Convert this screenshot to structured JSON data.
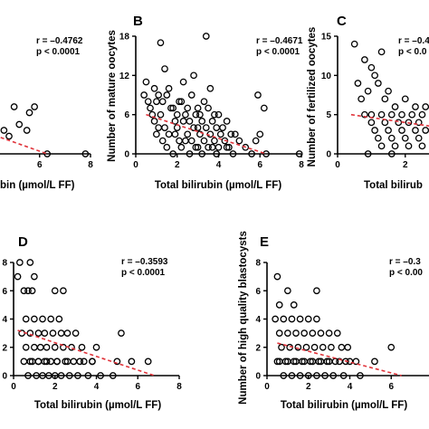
{
  "chart_data": [
    {
      "id": "A",
      "type": "scatter",
      "panel_label": "",
      "xlabel": "bin (µmol/L FF)",
      "ylabel": "",
      "xlim": [
        0,
        8
      ],
      "ylim": [
        0,
        20
      ],
      "xticks": [
        "4",
        "6",
        "8"
      ],
      "yticks": [],
      "stats": [
        "r = –0.4762",
        "p < 0.0001"
      ],
      "x": [
        4.0,
        4.2,
        4.5,
        4.6,
        4.3,
        4.1,
        4.0,
        5.0,
        5.2,
        5.5,
        5.8,
        4.8,
        5.6,
        6.3,
        7.8,
        4.4,
        4.0,
        4.5
      ],
      "y": [
        3,
        4,
        5,
        4,
        2,
        1,
        0,
        8,
        5,
        4,
        8,
        3,
        7,
        0,
        0,
        1,
        2,
        3
      ],
      "fit": {
        "x": [
          4.0,
          6.3
        ],
        "y": [
          3.5,
          0.0
        ]
      }
    },
    {
      "id": "B",
      "type": "scatter",
      "panel_label": "B",
      "xlabel": "Total bilirubin (µmol/L FF)",
      "ylabel": "Number of mature oocytes",
      "xlim": [
        0,
        8
      ],
      "ylim": [
        0,
        18
      ],
      "xticks": [
        "0",
        "2",
        "4",
        "6",
        "8"
      ],
      "yticks": [
        "0",
        "6",
        "12",
        "18"
      ],
      "stats": [
        "r = –0.4671",
        "p < 0.0001"
      ],
      "x": [
        0.5,
        1.2,
        3.4,
        0.4,
        0.9,
        1.4,
        2.1,
        2.8,
        0.6,
        1.1,
        1.6,
        2.3,
        3.0,
        3.6,
        0.7,
        1.0,
        1.3,
        1.5,
        1.8,
        2.0,
        2.2,
        2.5,
        2.7,
        3.1,
        3.3,
        3.5,
        3.8,
        0.8,
        1.2,
        1.7,
        1.9,
        2.4,
        2.6,
        2.9,
        3.2,
        3.7,
        4.0,
        4.4,
        0.9,
        1.1,
        1.4,
        2.0,
        2.3,
        2.8,
        3.0,
        3.4,
        3.9,
        4.2,
        4.6,
        1.0,
        1.6,
        1.9,
        2.5,
        3.1,
        3.6,
        4.1,
        4.8,
        1.3,
        2.1,
        2.7,
        3.3,
        3.8,
        4.3,
        5.0,
        1.5,
        2.2,
        2.9,
        3.5,
        4.0,
        4.5,
        5.3,
        1.8,
        2.6,
        3.2,
        3.9,
        4.7,
        5.6,
        2.4,
        3.0,
        3.7,
        4.4,
        5.9,
        6.2,
        7.9,
        6.0,
        5.8,
        6.3
      ],
      "y": [
        11,
        17,
        18,
        9,
        10,
        13,
        8,
        12,
        8,
        9,
        10,
        11,
        7,
        10,
        7,
        8,
        8,
        9,
        7,
        6,
        8,
        7,
        9,
        6,
        8,
        7,
        6,
        6,
        6,
        7,
        5,
        6,
        5,
        6,
        5,
        5,
        6,
        5,
        5,
        4,
        4,
        4,
        5,
        4,
        4,
        4,
        4,
        4,
        3,
        3,
        3,
        3,
        3,
        3,
        3,
        3,
        3,
        2,
        2,
        2,
        2,
        2,
        2,
        2,
        1,
        1,
        1,
        1,
        1,
        1,
        1,
        0,
        0,
        0,
        0,
        0,
        0,
        2,
        1,
        1,
        1,
        9,
        7,
        0,
        3,
        2,
        0
      ],
      "fit": {
        "x": [
          0.5,
          6.3
        ],
        "y": [
          6.0,
          0.0
        ]
      }
    },
    {
      "id": "C",
      "type": "scatter",
      "panel_label": "C",
      "xlabel": "Total bilirub",
      "ylabel": "Number of fertilized oocytes",
      "xlim": [
        0,
        4.2
      ],
      "ylim": [
        0,
        15
      ],
      "xticks": [
        "0",
        "2"
      ],
      "yticks": [
        "0",
        "5",
        "10",
        "15"
      ],
      "stats": [
        "r = –0.4",
        "p < 0.0"
      ],
      "x": [
        0.5,
        0.8,
        1.0,
        1.3,
        0.6,
        1.1,
        1.5,
        0.7,
        0.9,
        1.2,
        1.4,
        1.7,
        2.0,
        2.3,
        2.6,
        2.9,
        3.2,
        0.8,
        1.0,
        1.3,
        1.6,
        1.9,
        2.2,
        2.5,
        2.8,
        3.1,
        3.4,
        1.0,
        1.4,
        1.8,
        2.1,
        2.4,
        2.7,
        3.0,
        3.3,
        3.6,
        1.1,
        1.5,
        1.9,
        2.3,
        2.6,
        2.9,
        3.2,
        3.5,
        1.2,
        1.6,
        2.0,
        2.4,
        2.8,
        3.1,
        3.5,
        1.3,
        1.7,
        2.1,
        2.5,
        2.9,
        3.3,
        0.9,
        1.6,
        3.0
      ],
      "y": [
        14,
        12,
        11,
        13,
        9,
        10,
        8,
        7,
        8,
        9,
        7,
        6,
        7,
        6,
        6,
        5,
        6,
        5,
        5,
        5,
        5,
        5,
        5,
        5,
        5,
        5,
        5,
        4,
        4,
        4,
        4,
        4,
        4,
        4,
        4,
        4,
        3,
        3,
        3,
        3,
        3,
        3,
        3,
        3,
        2,
        2,
        2,
        2,
        2,
        2,
        2,
        1,
        1,
        1,
        1,
        1,
        1,
        0,
        0,
        0
      ],
      "fit": {
        "x": [
          0.4,
          3.6
        ],
        "y": [
          5.0,
          3.0
        ]
      }
    },
    {
      "id": "D",
      "type": "scatter",
      "panel_label": "D",
      "xlabel": "Total bilirubin (µmol/L FF)",
      "ylabel": "",
      "xlim": [
        0,
        8
      ],
      "ylim": [
        0,
        8
      ],
      "xticks": [
        "0",
        "2",
        "4",
        "6",
        "8"
      ],
      "yticks": [
        "0",
        "2",
        "4",
        "6",
        "8"
      ],
      "stats": [
        "r = –0.3593",
        "p < 0.0001"
      ],
      "x": [
        0.3,
        0.8,
        1.0,
        0.5,
        0.7,
        0.9,
        2.0,
        2.4,
        0.6,
        1.0,
        1.4,
        1.8,
        2.2,
        0.4,
        0.8,
        1.2,
        1.5,
        1.9,
        2.3,
        2.6,
        3.0,
        0.6,
        1.0,
        1.3,
        1.6,
        2.0,
        2.4,
        2.8,
        3.3,
        0.5,
        0.9,
        1.2,
        1.5,
        1.8,
        2.1,
        2.5,
        2.9,
        3.4,
        3.8,
        0.7,
        1.1,
        1.4,
        1.7,
        2.0,
        2.3,
        2.7,
        3.1,
        3.6,
        4.2,
        4.8,
        0.8,
        1.2,
        1.6,
        2.1,
        2.6,
        3.2,
        3.8,
        5.0,
        5.7,
        6.5,
        5.2,
        4.0,
        0.2
      ],
      "y": [
        8,
        8,
        7,
        6,
        6,
        6,
        6,
        6,
        4,
        4,
        4,
        4,
        4,
        3,
        3,
        3,
        3,
        3,
        3,
        3,
        3,
        2,
        2,
        2,
        2,
        2,
        2,
        2,
        2,
        1,
        1,
        1,
        1,
        1,
        1,
        1,
        1,
        1,
        1,
        0,
        0,
        0,
        0,
        0,
        0,
        0,
        0,
        0,
        0,
        0,
        1,
        1,
        1,
        1,
        1,
        1,
        1,
        1,
        1,
        1,
        3,
        2,
        7
      ],
      "fit": {
        "x": [
          0.2,
          6.8
        ],
        "y": [
          3.2,
          0.0
        ]
      }
    },
    {
      "id": "E",
      "type": "scatter",
      "panel_label": "E",
      "xlabel": "Total bilirubin (µmol/L FF)",
      "ylabel": "Number of high quality blastocysts",
      "xlim": [
        0,
        8
      ],
      "ylim": [
        0,
        8
      ],
      "xticks": [
        "0",
        "2",
        "4",
        "6",
        "8"
      ],
      "yticks": [
        "0",
        "2",
        "4",
        "6",
        "8"
      ],
      "stats": [
        "r = –0.3",
        "p < 0.00"
      ],
      "x": [
        0.5,
        1.0,
        0.6,
        1.3,
        2.4,
        0.4,
        0.8,
        1.2,
        1.6,
        2.0,
        2.4,
        0.6,
        1.0,
        1.4,
        1.8,
        2.2,
        2.6,
        3.0,
        3.4,
        0.7,
        1.1,
        1.5,
        1.9,
        2.3,
        2.7,
        3.1,
        3.6,
        0.5,
        0.9,
        1.3,
        1.7,
        2.1,
        2.5,
        2.9,
        3.3,
        3.8,
        0.8,
        1.2,
        1.6,
        2.0,
        2.4,
        2.8,
        3.2,
        3.7,
        4.5,
        0.6,
        1.0,
        1.4,
        1.8,
        2.2,
        2.6,
        3.0,
        3.5,
        4.0,
        4.3,
        5.2,
        6.0,
        7.8,
        3.9
      ],
      "y": [
        7,
        6,
        5,
        5,
        6,
        4,
        4,
        4,
        4,
        4,
        4,
        3,
        3,
        3,
        3,
        3,
        3,
        3,
        3,
        2,
        2,
        2,
        2,
        2,
        2,
        2,
        2,
        1,
        1,
        1,
        1,
        1,
        1,
        1,
        1,
        1,
        0,
        0,
        0,
        0,
        0,
        0,
        0,
        0,
        0,
        1,
        1,
        1,
        1,
        1,
        1,
        1,
        1,
        1,
        1,
        1,
        2,
        1,
        2
      ],
      "fit": {
        "x": [
          0.5,
          6.5
        ],
        "y": [
          2.3,
          0.0
        ]
      }
    }
  ]
}
